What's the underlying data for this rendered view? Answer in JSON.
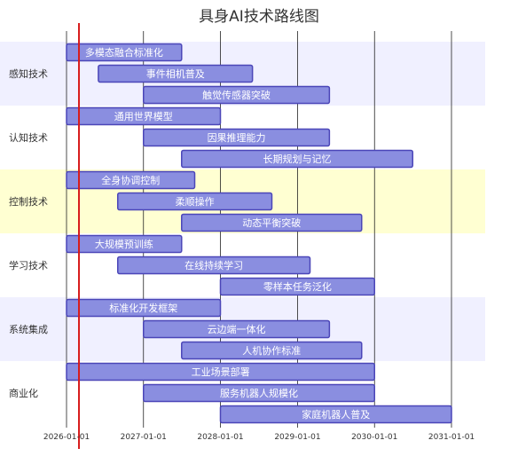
{
  "chart_data": {
    "type": "gantt",
    "title": "具身AI技术路线图",
    "x_ticks": [
      "2026-01-01",
      "2027-01-01",
      "2028-01-01",
      "2029-01-01",
      "2030-01-01",
      "2031-01-01"
    ],
    "xlim": [
      "2026-01-01",
      "2031-01-01"
    ],
    "today_marker": "2026-03-01",
    "section_colors": [
      "#f0f0ff",
      "#ffffff",
      "#ffffd2",
      "#ffffff",
      "#f0f0ff",
      "#ffffff"
    ],
    "sections": [
      {
        "name": "感知技术",
        "tasks": [
          {
            "label": "多模态融合标准化",
            "start": "2026-01-01",
            "end": "2027-07-01"
          },
          {
            "label": "事件相机普及",
            "start": "2026-06-01",
            "end": "2028-06-01"
          },
          {
            "label": "触觉传感器突破",
            "start": "2027-01-01",
            "end": "2029-06-01"
          }
        ]
      },
      {
        "name": "认知技术",
        "tasks": [
          {
            "label": "通用世界模型",
            "start": "2026-01-01",
            "end": "2028-01-01"
          },
          {
            "label": "因果推理能力",
            "start": "2027-01-01",
            "end": "2029-06-01"
          },
          {
            "label": "长期规划与记忆",
            "start": "2027-07-01",
            "end": "2030-07-01"
          }
        ]
      },
      {
        "name": "控制技术",
        "tasks": [
          {
            "label": "全身协调控制",
            "start": "2026-01-01",
            "end": "2027-09-01"
          },
          {
            "label": "柔顺操作",
            "start": "2026-09-01",
            "end": "2028-09-01"
          },
          {
            "label": "动态平衡突破",
            "start": "2027-07-01",
            "end": "2029-11-01"
          }
        ]
      },
      {
        "name": "学习技术",
        "tasks": [
          {
            "label": "大规模预训练",
            "start": "2026-01-01",
            "end": "2027-07-01"
          },
          {
            "label": "在线持续学习",
            "start": "2026-09-01",
            "end": "2029-03-01"
          },
          {
            "label": "零样本任务泛化",
            "start": "2028-01-01",
            "end": "2030-01-01"
          }
        ]
      },
      {
        "name": "系统集成",
        "tasks": [
          {
            "label": "标准化开发框架",
            "start": "2026-01-01",
            "end": "2028-01-01"
          },
          {
            "label": "云边端一体化",
            "start": "2027-01-01",
            "end": "2029-06-01"
          },
          {
            "label": "人机协作标准",
            "start": "2027-07-01",
            "end": "2029-11-01"
          }
        ]
      },
      {
        "name": "商业化",
        "tasks": [
          {
            "label": "工业场景部署",
            "start": "2026-01-01",
            "end": "2030-01-01"
          },
          {
            "label": "服务机器人规模化",
            "start": "2027-01-01",
            "end": "2030-01-01"
          },
          {
            "label": "家庭机器人普及",
            "start": "2028-01-01",
            "end": "2031-01-01"
          }
        ]
      }
    ]
  }
}
